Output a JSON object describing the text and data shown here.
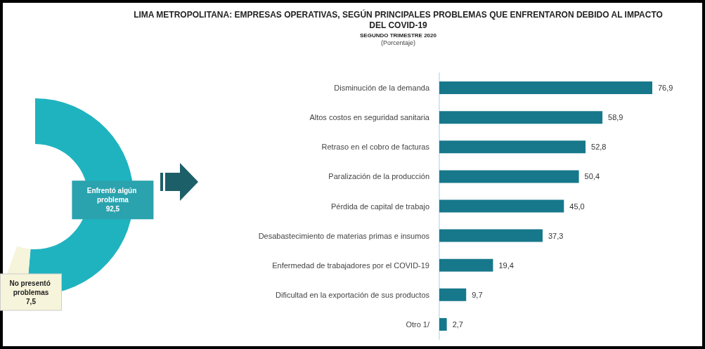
{
  "chart_data": [
    {
      "type": "donut",
      "categories": [
        "Enfrentó algún problema",
        "No presentó problemas"
      ],
      "values": [
        92.5,
        7.5
      ],
      "colors": [
        "#1fb3c0",
        "#f6f4da"
      ],
      "value_labels": [
        "92,5",
        "7,5"
      ]
    },
    {
      "type": "bar",
      "orientation": "horizontal",
      "title": "LIMA METROPOLITANA: EMPRESAS OPERATIVAS, SEGÚN PRINCIPALES PROBLEMAS QUE ENFRENTARON DEBIDO AL IMPACTO DEL COVID-19",
      "subtitle": "SEGUNDO TRIMESTRE 2020",
      "annotations": [
        "(Porcentaje)"
      ],
      "tick_labels": "y",
      "categories": [
        "Disminución de la demanda",
        "Altos costos en seguridad sanitaria",
        "Retraso en el cobro de facturas",
        "Paralización de la producción",
        "Pérdida de capital de trabajo",
        "Desabastecimiento de materias primas e insumos",
        "Enfermedad de trabajadores por el COVID-19",
        "Dificultad en la exportación de sus productos",
        "Otro 1/"
      ],
      "values": [
        76.9,
        58.9,
        52.8,
        50.4,
        45.0,
        37.3,
        19.4,
        9.7,
        2.7
      ],
      "value_labels": [
        "76,9",
        "58,9",
        "52,8",
        "50,4",
        "45,0",
        "37,3",
        "19,4",
        "9,7",
        "2,7"
      ],
      "color": "#17788b"
    }
  ]
}
